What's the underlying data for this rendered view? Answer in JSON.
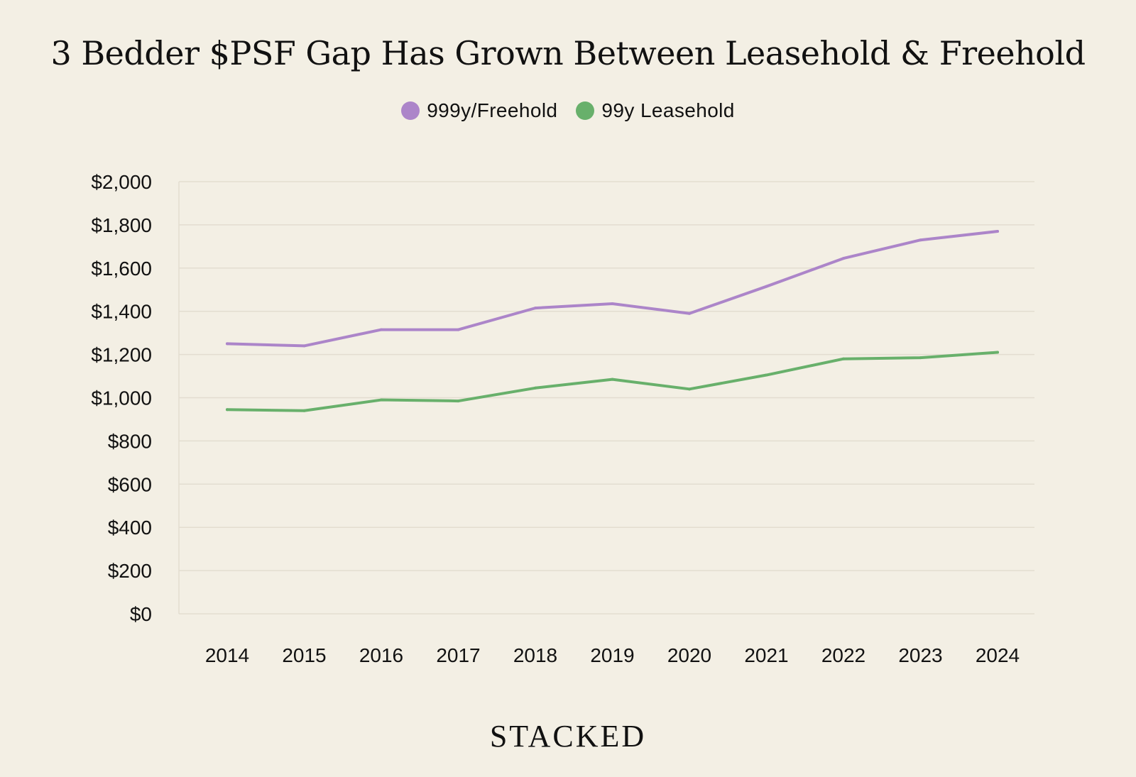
{
  "chart_data": {
    "type": "line",
    "title": "3 Bedder $PSF Gap Has Grown Between Leasehold & Freehold",
    "categories": [
      "2014",
      "2015",
      "2016",
      "2017",
      "2018",
      "2019",
      "2020",
      "2021",
      "2022",
      "2023",
      "2024"
    ],
    "series": [
      {
        "name": "999y/Freehold",
        "color": "#ac85c9",
        "values": [
          1250,
          1240,
          1315,
          1315,
          1415,
          1435,
          1390,
          1515,
          1645,
          1730,
          1770
        ]
      },
      {
        "name": "99y Leasehold",
        "color": "#68b06b",
        "values": [
          945,
          940,
          990,
          985,
          1045,
          1085,
          1040,
          1105,
          1180,
          1185,
          1210
        ]
      }
    ],
    "y_ticks": [
      "$0",
      "$200",
      "$400",
      "$600",
      "$800",
      "$1,000",
      "$1,200",
      "$1,400",
      "$1,600",
      "$1,800",
      "$2,000"
    ],
    "ylim": [
      0,
      2000
    ],
    "xlabel": "",
    "ylabel": "",
    "grid": true,
    "legend_position": "top-center"
  },
  "brand": "STACKED"
}
